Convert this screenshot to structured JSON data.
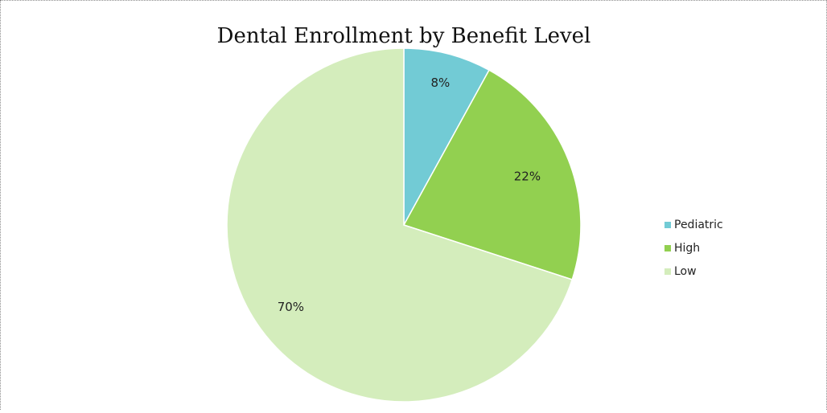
{
  "chart_data": {
    "type": "pie",
    "title": "Dental Enrollment by Benefit Level",
    "legend_position": "right",
    "slices": [
      {
        "name": "Pediatric",
        "value": 8,
        "label": "8%",
        "color": "#72CBD5"
      },
      {
        "name": "High",
        "value": 22,
        "label": "22%",
        "color": "#92D050"
      },
      {
        "name": "Low",
        "value": 70,
        "label": "70%",
        "color": "#D4EDBC"
      }
    ]
  }
}
